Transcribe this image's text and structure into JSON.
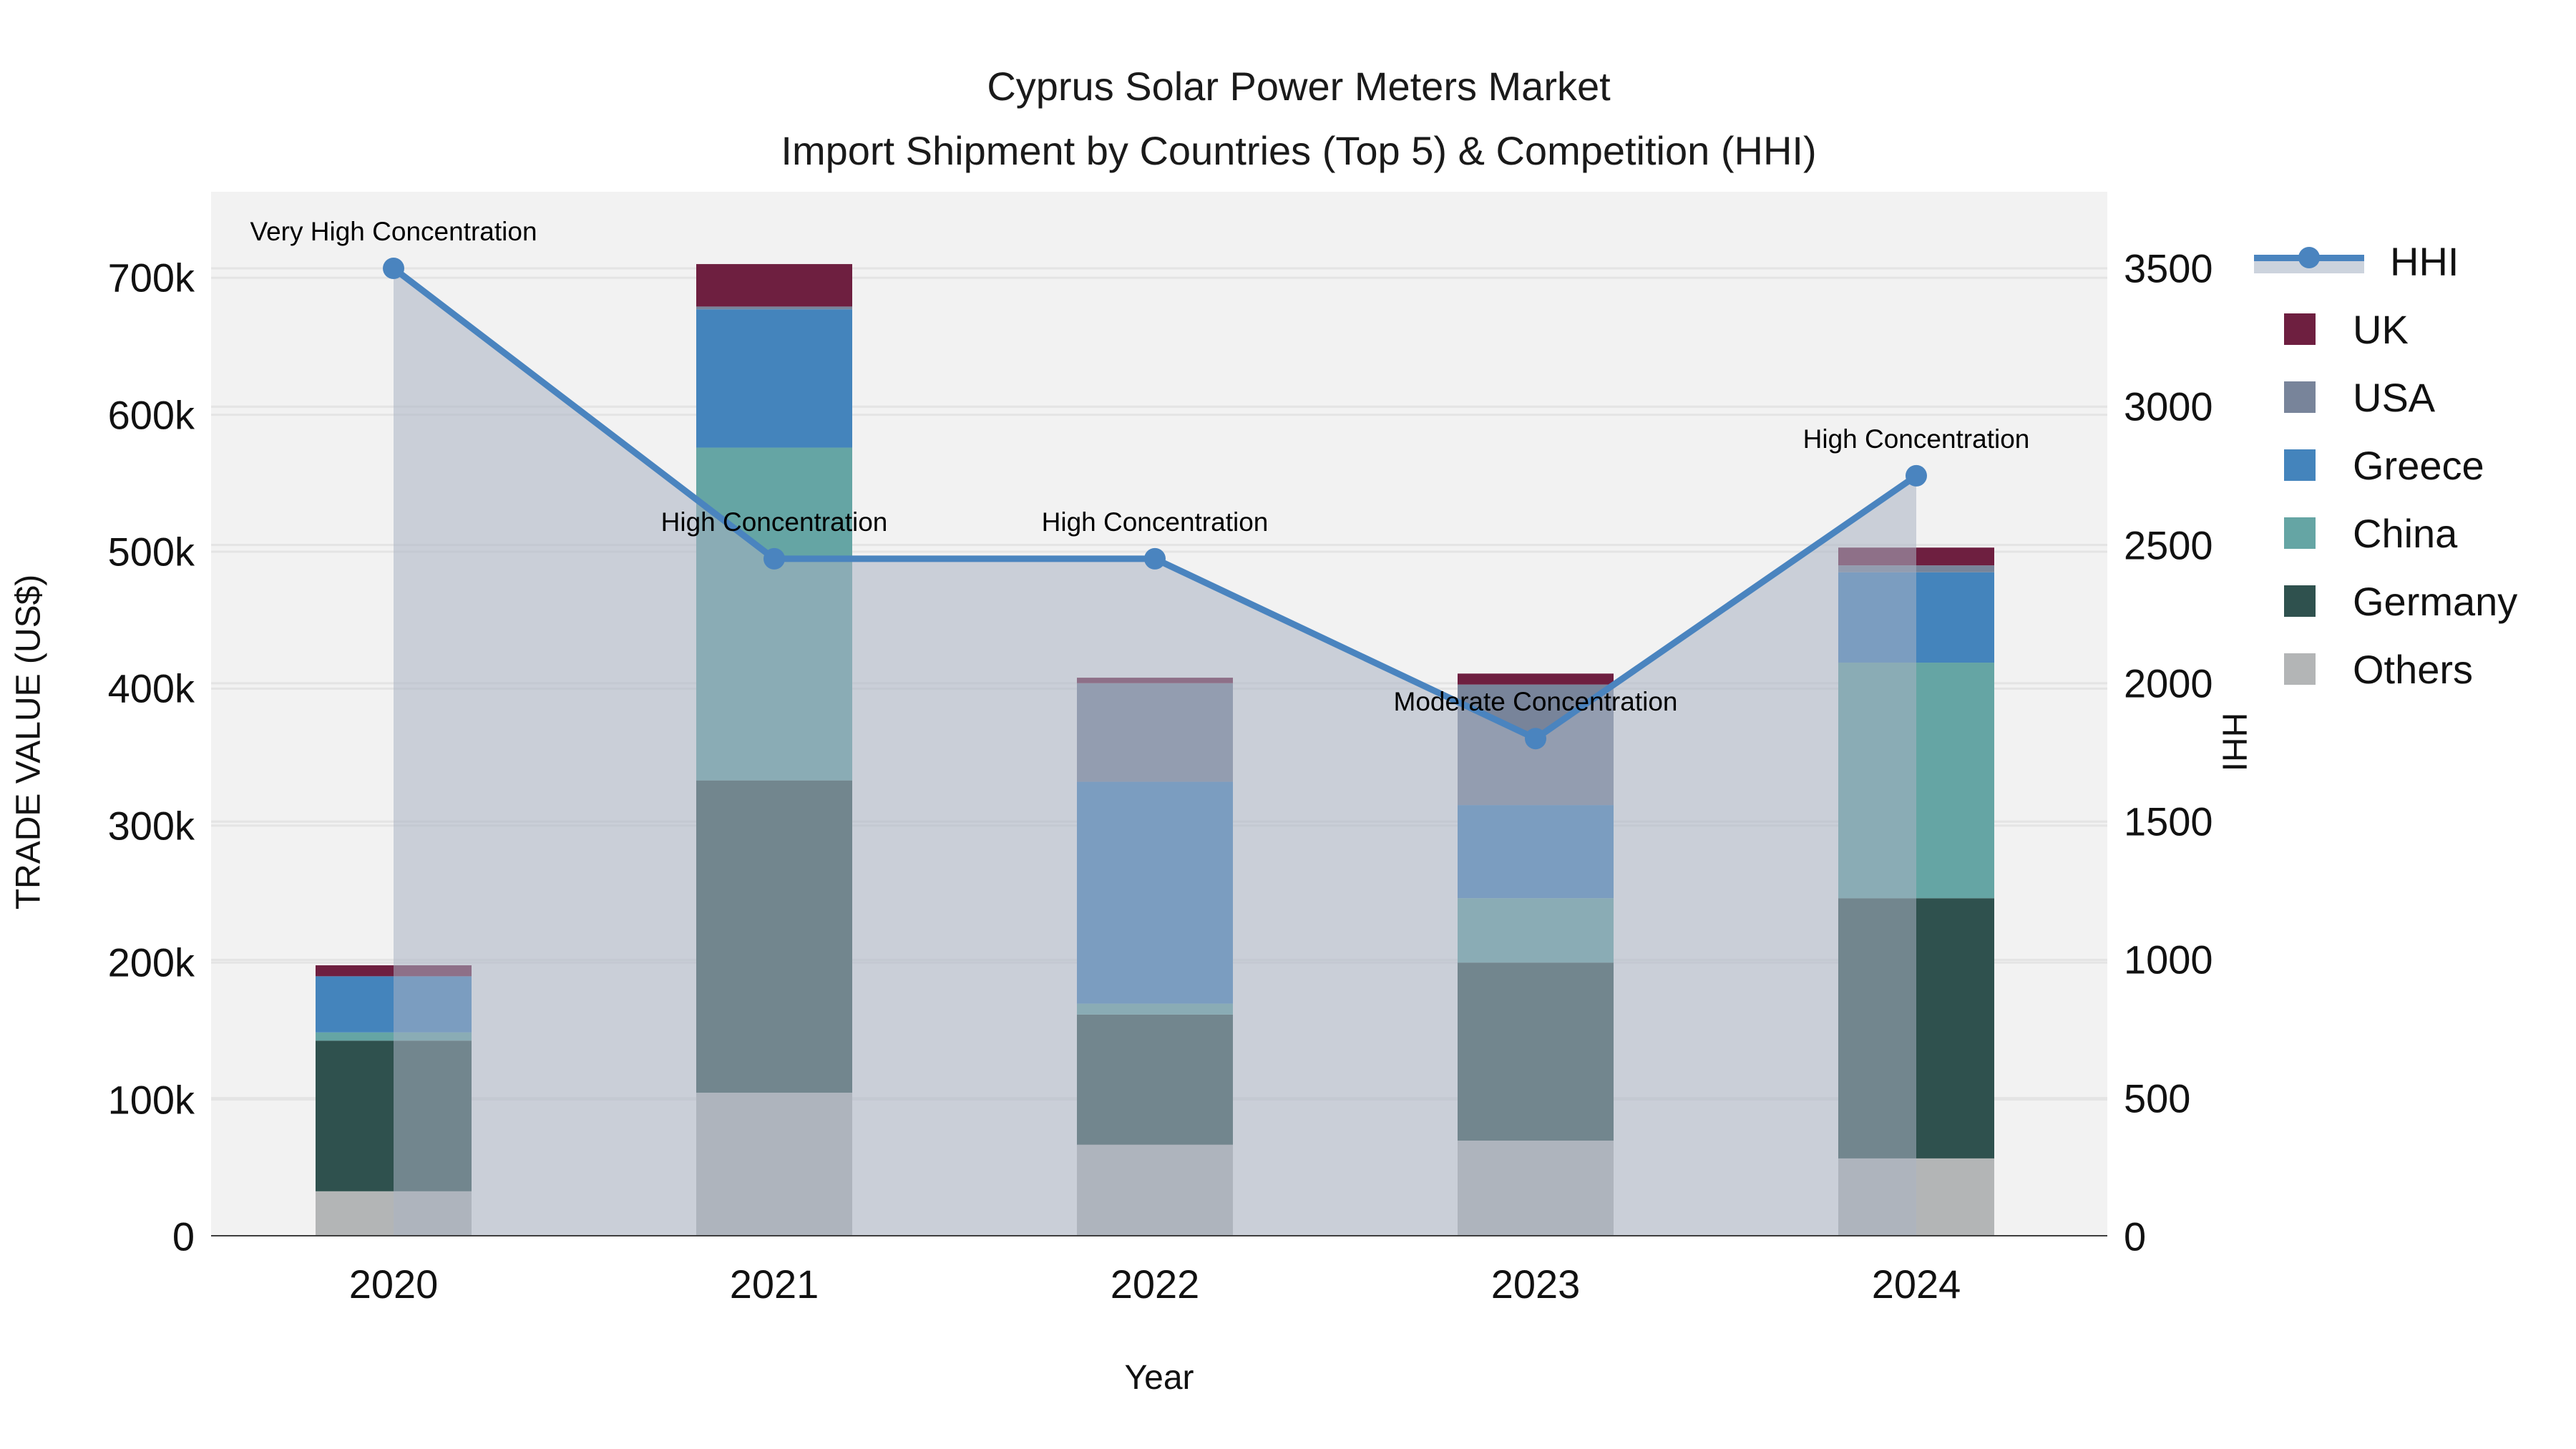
{
  "title": {
    "line1": "Cyprus Solar Power Meters Market",
    "line2": "Import Shipment by Countries (Top 5) & Competition (HHI)"
  },
  "axes": {
    "left_label": "TRADE VALUE (US$)",
    "right_label": "HHI",
    "x_label": "Year",
    "left_ticks": [
      {
        "value": 0,
        "label": "0"
      },
      {
        "value": 100,
        "label": "100k"
      },
      {
        "value": 200,
        "label": "200k"
      },
      {
        "value": 300,
        "label": "300k"
      },
      {
        "value": 400,
        "label": "400k"
      },
      {
        "value": 500,
        "label": "500k"
      },
      {
        "value": 600,
        "label": "600k"
      },
      {
        "value": 700,
        "label": "700k"
      }
    ],
    "right_ticks": [
      {
        "value": 0,
        "label": "0"
      },
      {
        "value": 500,
        "label": "500"
      },
      {
        "value": 1000,
        "label": "1000"
      },
      {
        "value": 1500,
        "label": "1500"
      },
      {
        "value": 2000,
        "label": "2000"
      },
      {
        "value": 2500,
        "label": "2500"
      },
      {
        "value": 3000,
        "label": "3000"
      },
      {
        "value": 3500,
        "label": "3500"
      }
    ]
  },
  "chart_data": {
    "type": "bar",
    "subtype": "stacked-bar-with-line",
    "categories": [
      "2020",
      "2021",
      "2022",
      "2023",
      "2024"
    ],
    "value_unit": "US$ thousands (left axis)",
    "stack_order_bottom_to_top": [
      "Others",
      "Germany",
      "China",
      "Greece",
      "USA",
      "UK"
    ],
    "series": [
      {
        "name": "UK",
        "color": "#6e1f40",
        "values": [
          8,
          31,
          4,
          8,
          13
        ]
      },
      {
        "name": "USA",
        "color": "#78849a",
        "values": [
          0,
          2,
          72,
          88,
          5
        ]
      },
      {
        "name": "Greece",
        "color": "#4484bc",
        "values": [
          41,
          101,
          162,
          68,
          66
        ]
      },
      {
        "name": "China",
        "color": "#65a5a4",
        "values": [
          6,
          243,
          8,
          47,
          172
        ]
      },
      {
        "name": "Germany",
        "color": "#2f514e",
        "values": [
          110,
          228,
          95,
          130,
          190
        ]
      },
      {
        "name": "Others",
        "color": "#b3b5b6",
        "values": [
          33,
          105,
          67,
          70,
          57
        ]
      }
    ],
    "bar_totals": [
      198,
      710,
      408,
      411,
      503
    ],
    "line_series": {
      "name": "HHI",
      "color": "#4a84bf",
      "fill_color": "rgba(169,178,195,0.55)",
      "values": [
        3500,
        2450,
        2450,
        1800,
        2750
      ],
      "axis": "right"
    },
    "annotations": [
      {
        "category": "2020",
        "text": "Very High Concentration"
      },
      {
        "category": "2021",
        "text": "High Concentration"
      },
      {
        "category": "2022",
        "text": "High Concentration"
      },
      {
        "category": "2023",
        "text": "Moderate Concentration"
      },
      {
        "category": "2024",
        "text": "High Concentration"
      }
    ],
    "xlabel": "Year",
    "ylabel": "TRADE VALUE (US$)",
    "ylabel2": "HHI",
    "ylim_left_k": [
      0,
      763
    ],
    "ylim_right": [
      0,
      3815
    ],
    "grid": true,
    "legend_position": "right"
  },
  "legend": {
    "items": [
      {
        "name": "HHI",
        "kind": "line",
        "color": "#4a84bf",
        "band_color": "#ccd3dd"
      },
      {
        "name": "UK",
        "kind": "swatch",
        "color": "#6e1f40"
      },
      {
        "name": "USA",
        "kind": "swatch",
        "color": "#78849a"
      },
      {
        "name": "Greece",
        "kind": "swatch",
        "color": "#4484bc"
      },
      {
        "name": "China",
        "kind": "swatch",
        "color": "#65a5a4"
      },
      {
        "name": "Germany",
        "kind": "swatch",
        "color": "#2f514e"
      },
      {
        "name": "Others",
        "kind": "swatch",
        "color": "#b3b5b6"
      }
    ]
  },
  "colors": {
    "plot_background": "#f2f2f2",
    "figure_background": "#ffffff",
    "gridline": "#e4e4e4",
    "axis_line": "#3d3d3d",
    "text": "#111111"
  }
}
